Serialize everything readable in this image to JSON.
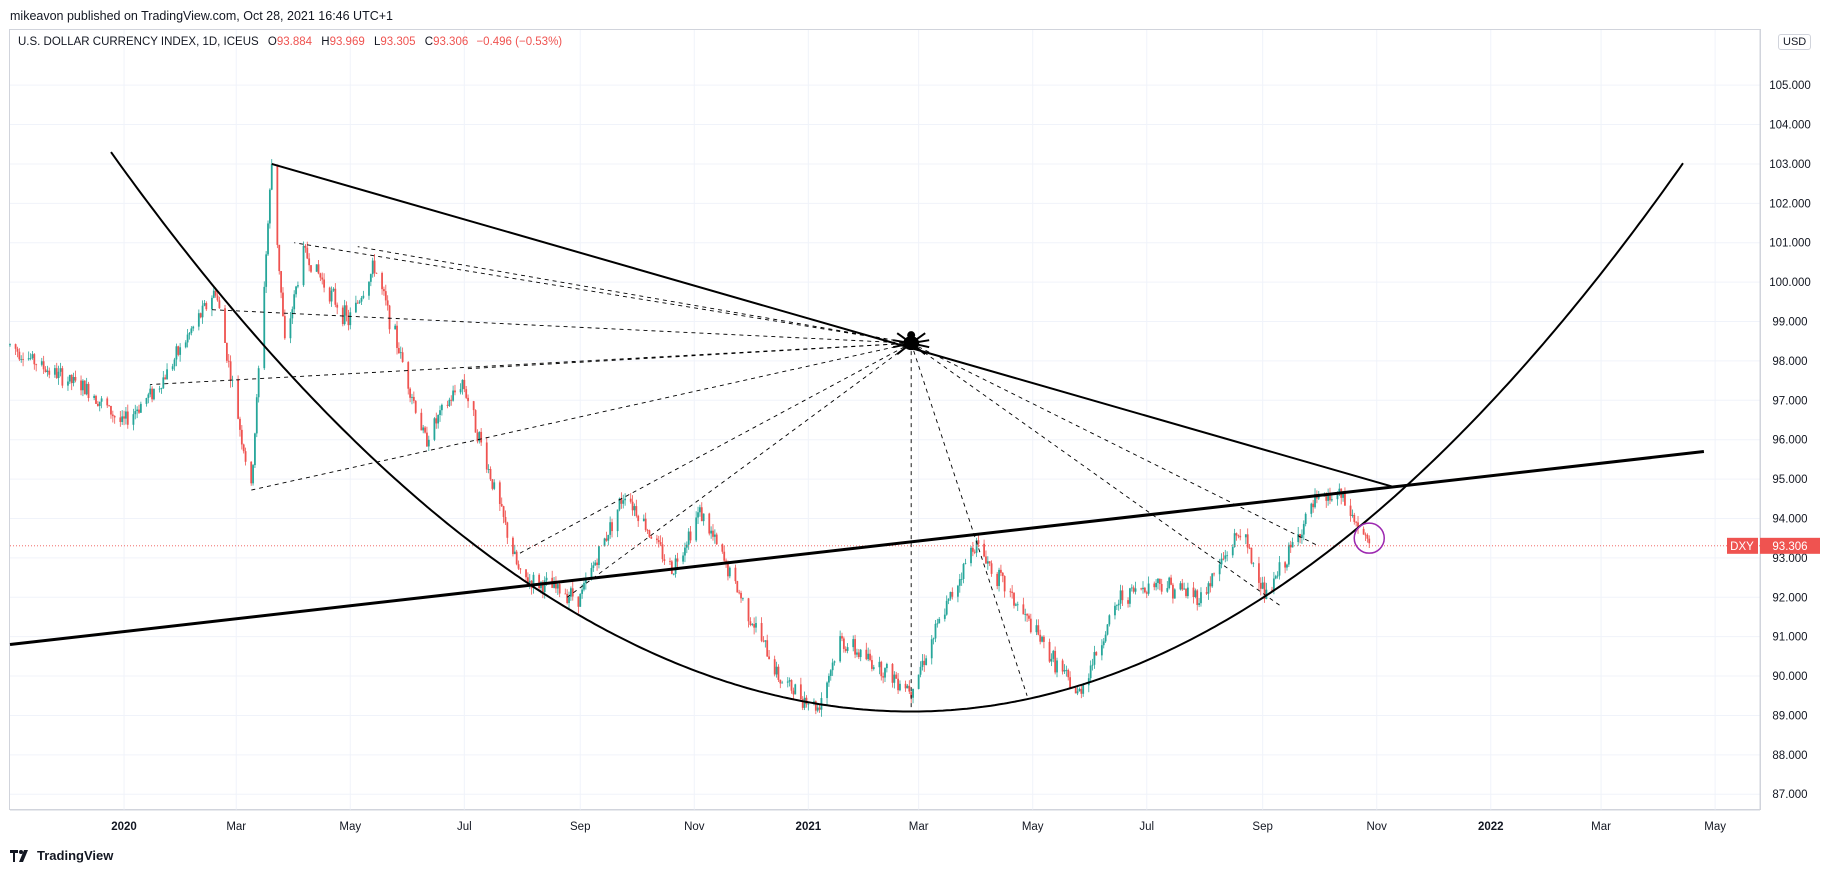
{
  "header": {
    "published_text": "mikeavon published on TradingView.com, Oct 28, 2021 16:46 UTC+1"
  },
  "legend": {
    "symbol_title": "U.S. DOLLAR CURRENCY INDEX, 1D, ICEUS",
    "open_label": "O",
    "open": "93.884",
    "high_label": "H",
    "high": "93.969",
    "low_label": "L",
    "low": "93.305",
    "close_label": "C",
    "close": "93.306",
    "change": "−0.496 (−0.53%)"
  },
  "price_scale": {
    "currency": "USD"
  },
  "price_tag": {
    "symbol": "DXY",
    "value": "93.306"
  },
  "footer": {
    "brand": "TradingView"
  },
  "colors": {
    "up": "#26a69a",
    "down": "#ef5350",
    "line": "#000000",
    "grid": "#f0f3fa",
    "circle": "#9c27b0"
  },
  "chart_data": {
    "type": "candlestick",
    "title": "U.S. DOLLAR CURRENCY INDEX, 1D, ICEUS",
    "xlabel": "",
    "ylabel": "",
    "x_range": [
      "2019-11-01",
      "2022-05-25"
    ],
    "ylim": [
      86.6,
      106.4
    ],
    "y_ticks": [
      87,
      88,
      89,
      90,
      91,
      92,
      93,
      94,
      95,
      96,
      97,
      98,
      99,
      100,
      101,
      102,
      103,
      104,
      105
    ],
    "y_tick_labels": [
      "87.000",
      "88.000",
      "89.000",
      "90.000",
      "91.000",
      "92.000",
      "93.000",
      "94.000",
      "95.000",
      "96.000",
      "97.000",
      "98.000",
      "99.000",
      "100.000",
      "101.000",
      "102.000",
      "103.000",
      "104.000",
      "105.000"
    ],
    "x_ticks": [
      {
        "date": "2020-01-01",
        "label": "2020",
        "bold": true
      },
      {
        "date": "2020-03-01",
        "label": "Mar",
        "bold": false
      },
      {
        "date": "2020-05-01",
        "label": "May",
        "bold": false
      },
      {
        "date": "2020-07-01",
        "label": "Jul",
        "bold": false
      },
      {
        "date": "2020-09-01",
        "label": "Sep",
        "bold": false
      },
      {
        "date": "2020-11-01",
        "label": "Nov",
        "bold": false
      },
      {
        "date": "2021-01-01",
        "label": "2021",
        "bold": true
      },
      {
        "date": "2021-03-01",
        "label": "Mar",
        "bold": false
      },
      {
        "date": "2021-05-01",
        "label": "May",
        "bold": false
      },
      {
        "date": "2021-07-01",
        "label": "Jul",
        "bold": false
      },
      {
        "date": "2021-09-01",
        "label": "Sep",
        "bold": false
      },
      {
        "date": "2021-11-01",
        "label": "Nov",
        "bold": false
      },
      {
        "date": "2022-01-01",
        "label": "2022",
        "bold": true
      },
      {
        "date": "2022-03-01",
        "label": "Mar",
        "bold": false
      },
      {
        "date": "2022-05-01",
        "label": "May",
        "bold": false
      }
    ],
    "last_close": 93.306,
    "price_path": [
      [
        "2019-11-01",
        98.4
      ],
      [
        "2019-11-20",
        97.8
      ],
      [
        "2019-12-15",
        97.2
      ],
      [
        "2019-12-31",
        96.4
      ],
      [
        "2020-01-20",
        97.4
      ],
      [
        "2020-02-19",
        99.8
      ],
      [
        "2020-03-09",
        94.7
      ],
      [
        "2020-03-20",
        103.0
      ],
      [
        "2020-03-27",
        98.4
      ],
      [
        "2020-04-06",
        100.8
      ],
      [
        "2020-04-30",
        99.0
      ],
      [
        "2020-05-14",
        100.4
      ],
      [
        "2020-06-10",
        96.0
      ],
      [
        "2020-06-30",
        97.5
      ],
      [
        "2020-07-31",
        92.5
      ],
      [
        "2020-09-01",
        92.0
      ],
      [
        "2020-09-25",
        94.7
      ],
      [
        "2020-10-20",
        92.7
      ],
      [
        "2020-11-04",
        94.2
      ],
      [
        "2020-12-17",
        89.9
      ],
      [
        "2021-01-06",
        89.2
      ],
      [
        "2021-01-18",
        90.9
      ],
      [
        "2021-02-25",
        89.7
      ],
      [
        "2021-03-31",
        93.4
      ],
      [
        "2021-05-25",
        89.5
      ],
      [
        "2021-06-17",
        92.0
      ],
      [
        "2021-07-07",
        92.4
      ],
      [
        "2021-07-30",
        92.0
      ],
      [
        "2021-08-20",
        93.7
      ],
      [
        "2021-09-03",
        92.0
      ],
      [
        "2021-09-29",
        94.4
      ],
      [
        "2021-10-12",
        94.6
      ],
      [
        "2021-10-28",
        93.3
      ]
    ],
    "drawings": {
      "descending_trendline": [
        [
          "2020-03-20",
          103.0
        ],
        [
          "2021-11-10",
          94.8
        ]
      ],
      "ascending_trendline": [
        [
          "2019-11-01",
          90.8
        ],
        [
          "2022-04-25",
          95.7
        ]
      ],
      "parabola_points": [
        [
          "2019-12-25",
          103.3
        ],
        [
          "2021-02-25",
          89.1
        ],
        [
          "2022-04-15",
          103.1
        ]
      ],
      "fan_origin": [
        "2021-02-25",
        98.45
      ],
      "fan_rays": [
        [
          "2020-04-01",
          101.0
        ],
        [
          "2020-05-05",
          100.9
        ],
        [
          "2020-02-17",
          99.3
        ],
        [
          "2020-07-02",
          97.8
        ],
        [
          "2020-01-15",
          97.4
        ],
        [
          "2020-03-07",
          94.7
        ],
        [
          "2020-07-30",
          93.1
        ],
        [
          "2020-08-25",
          92.0
        ],
        [
          "2021-02-25",
          89.1
        ],
        [
          "2021-04-28",
          89.5
        ],
        [
          "2021-09-10",
          91.8
        ],
        [
          "2021-10-01",
          93.3
        ]
      ],
      "spider_marker": [
        "2021-02-25",
        98.45
      ],
      "highlight_circle": [
        "2021-10-28",
        93.5
      ]
    }
  }
}
